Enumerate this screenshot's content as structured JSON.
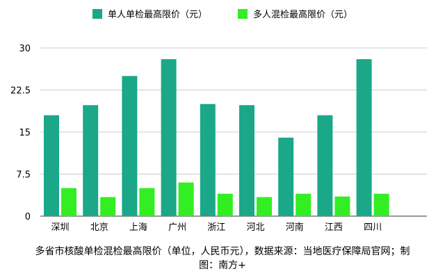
{
  "legend": {
    "series_0": "单人单检最高限价（元）",
    "series_1": "多人混检最高限价（元）"
  },
  "caption": "多省市核酸单检混检最高限价（单位，人民币元），数据来源：当地医疗保障局官网；制图：南方+",
  "colors": {
    "series_0": "#1aa889",
    "series_1": "#33ee22",
    "gridline": "#cccccc",
    "axis": "#333333"
  },
  "chart_data": {
    "type": "bar",
    "categories": [
      "深圳",
      "北京",
      "上海",
      "广州",
      "浙江",
      "河北",
      "河南",
      "江西",
      "四川"
    ],
    "series": [
      {
        "name": "单人单检最高限价（元）",
        "values": [
          18,
          19.8,
          25,
          28,
          20,
          19.8,
          14,
          18,
          28
        ]
      },
      {
        "name": "多人混检最高限价（元）",
        "values": [
          5,
          3.4,
          5,
          6,
          4,
          3.4,
          4,
          3.5,
          4
        ]
      }
    ],
    "yticks": [
      "0",
      "7.5",
      "15",
      "22.5",
      "30"
    ],
    "ylim": [
      0,
      30
    ],
    "grid": true,
    "legend_position": "top"
  }
}
